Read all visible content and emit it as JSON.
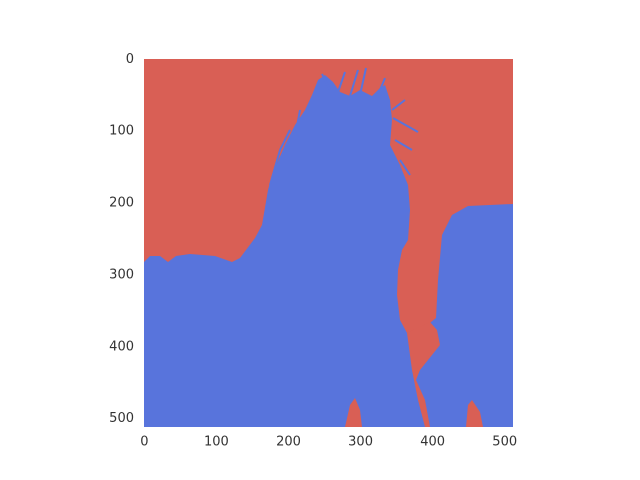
{
  "chart_data": {
    "type": "image",
    "colors": [
      "#d95f55",
      "#5874dc"
    ],
    "xlim": [
      -0.5,
      511.5
    ],
    "ylim": [
      511.5,
      -0.5
    ],
    "xticks": [
      0,
      100,
      200,
      300,
      400,
      500
    ],
    "yticks": [
      0,
      100,
      200,
      300,
      400,
      500
    ]
  }
}
